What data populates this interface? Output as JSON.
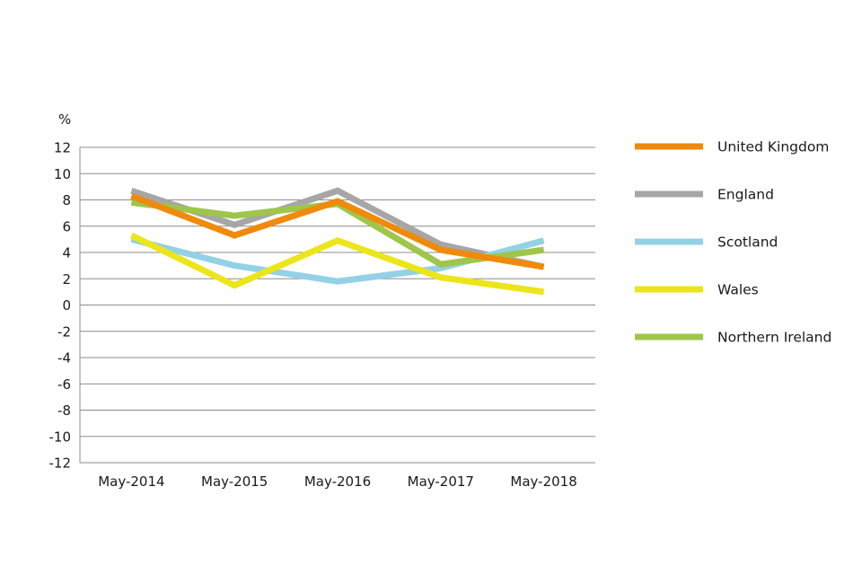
{
  "chart_data": {
    "type": "line",
    "ylabel": "%",
    "categories": [
      "May-2014",
      "May-2015",
      "May-2016",
      "May-2017",
      "May-2018"
    ],
    "ylim": [
      -12,
      12
    ],
    "yticks": [
      12,
      10,
      8,
      6,
      4,
      2,
      0,
      -2,
      -4,
      -6,
      -8,
      -10,
      -12
    ],
    "grid": "horizontal",
    "legend": "right",
    "series": [
      {
        "name": "United Kingdom",
        "color": "#f08a0b",
        "values": [
          8.3,
          5.3,
          7.9,
          4.2,
          2.9
        ]
      },
      {
        "name": "England",
        "color": "#a6a6a6",
        "values": [
          8.7,
          6.1,
          8.7,
          4.6,
          2.9
        ]
      },
      {
        "name": "Scotland",
        "color": "#93d1e6",
        "values": [
          5.0,
          3.0,
          1.8,
          2.8,
          4.9
        ]
      },
      {
        "name": "Wales",
        "color": "#ece51a",
        "values": [
          5.3,
          1.5,
          4.9,
          2.1,
          1.0
        ]
      },
      {
        "name": "Northern Ireland",
        "color": "#9fc54a",
        "values": [
          7.8,
          6.8,
          7.7,
          3.1,
          4.2
        ]
      }
    ]
  }
}
